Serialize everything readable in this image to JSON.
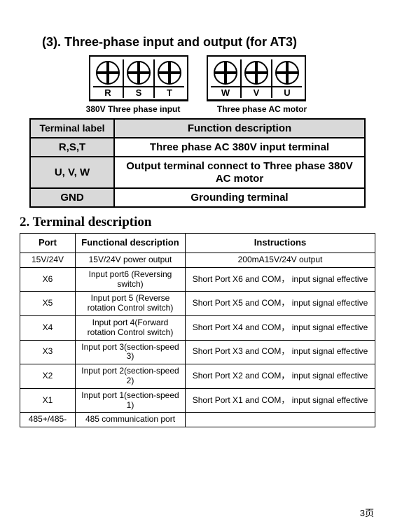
{
  "heading": {
    "num": "(3).",
    "text": "Three-phase input and output (for AT3)"
  },
  "terminal_block": {
    "left": {
      "labels": [
        "R",
        "S",
        "T"
      ],
      "caption": "380V Three phase input"
    },
    "right": {
      "labels": [
        "W",
        "V",
        "U"
      ],
      "caption": "Three phase AC motor"
    }
  },
  "table1": {
    "headers": {
      "label": "Terminal label",
      "func": "Function description"
    },
    "rows": [
      {
        "label": "R,S,T",
        "func": "Three phase AC 380V input terminal"
      },
      {
        "label": "U, V, W",
        "func": "Output terminal connect to Three phase 380V AC motor"
      },
      {
        "label": "GND",
        "func": "Grounding terminal"
      }
    ]
  },
  "section2": "2. Terminal description",
  "table2": {
    "headers": {
      "port": "Port",
      "func": "Functional description",
      "inst": "Instructions"
    },
    "rows": [
      {
        "port": "15V/24V",
        "func": "15V/24V power output",
        "inst": "200mA15V/24V output"
      },
      {
        "port": "X6",
        "func": "Input port6 (Reversing  switch)",
        "inst": "Short Port X6 and COM， input signal effective"
      },
      {
        "port": "X5",
        "func": "Input port 5 (Reverse rotation Control switch)",
        "inst": "Short Port X5 and COM， input signal effective"
      },
      {
        "port": "X4",
        "func": "Input port 4(Forward rotation Control switch)",
        "inst": "Short Port X4 and COM， input signal effective"
      },
      {
        "port": "X3",
        "func": "Input port 3(section-speed 3)",
        "inst": "Short Port X3 and COM， input signal effective"
      },
      {
        "port": "X2",
        "func": "Input port 2(section-speed 2)",
        "inst": "Short Port X2 and COM， input signal effective"
      },
      {
        "port": "X1",
        "func": "Input port 1(section-speed 1)",
        "inst": "Short Port X1 and COM， input signal effective"
      },
      {
        "port": "485+/485-",
        "func": "485 communication port",
        "inst": ""
      }
    ]
  },
  "page_number": "3页"
}
